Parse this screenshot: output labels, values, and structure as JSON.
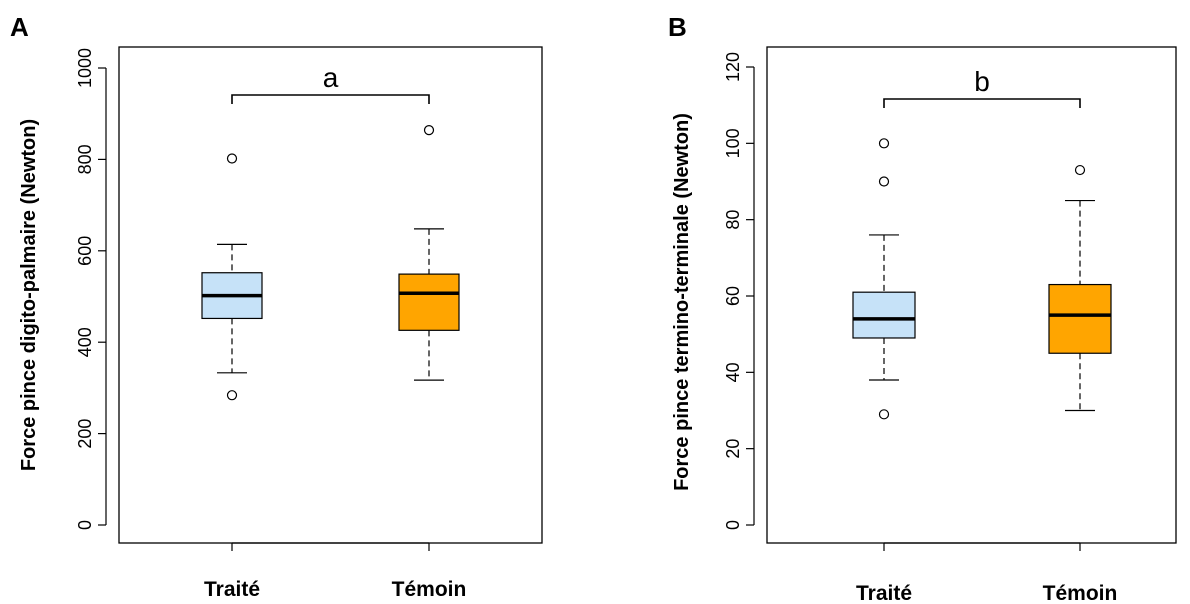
{
  "colors": {
    "traite": "#c6e2f8",
    "temoin": "#ffa500"
  },
  "chart_data": [
    {
      "type": "boxplot",
      "panel": "A",
      "categories": [
        "Traité",
        "Témoin"
      ],
      "ylabel": "Force pince digito-palmaire (Newton)",
      "ylim": [
        0,
        1000
      ],
      "yticks": [
        "0",
        "200",
        "400",
        "600",
        "800",
        "1000"
      ],
      "significance": "a",
      "boxes": [
        {
          "name": "Traité",
          "whisker_low": 333,
          "q1": 452,
          "median": 502,
          "q3": 552,
          "whisker_high": 614,
          "outliers": [
            802,
            284
          ]
        },
        {
          "name": "Témoin",
          "whisker_low": 317,
          "q1": 426,
          "median": 507,
          "q3": 549,
          "whisker_high": 648,
          "outliers": [
            864
          ]
        }
      ]
    },
    {
      "type": "boxplot",
      "panel": "B",
      "categories": [
        "Traité",
        "Témoin"
      ],
      "ylabel": "Force pince termino-terminale (Newton)",
      "ylim": [
        0,
        120
      ],
      "yticks": [
        "0",
        "20",
        "40",
        "60",
        "80",
        "100",
        "120"
      ],
      "significance": "b",
      "boxes": [
        {
          "name": "Traité",
          "whisker_low": 38,
          "q1": 49,
          "median": 54,
          "q3": 61,
          "whisker_high": 76,
          "outliers": [
            100,
            90,
            29
          ]
        },
        {
          "name": "Témoin",
          "whisker_low": 30,
          "q1": 45,
          "median": 55,
          "q3": 63,
          "whisker_high": 85,
          "outliers": [
            93
          ]
        }
      ]
    }
  ]
}
